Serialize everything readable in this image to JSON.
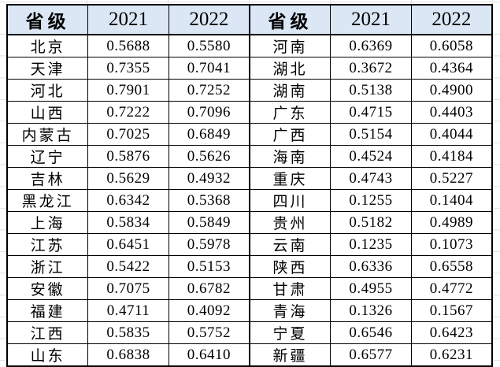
{
  "colors": {
    "header_bg": "#dbe7f4",
    "border": "#000000",
    "gridline": "#e0e0e0"
  },
  "chart_data": {
    "type": "table",
    "title": "",
    "columns": [
      "省级",
      "2021",
      "2022",
      "省级",
      "2021",
      "2022"
    ],
    "rows": [
      [
        "北京",
        "0.5688",
        "0.5580",
        "河南",
        "0.6369",
        "0.6058"
      ],
      [
        "天津",
        "0.7355",
        "0.7041",
        "湖北",
        "0.3672",
        "0.4364"
      ],
      [
        "河北",
        "0.7901",
        "0.7252",
        "湖南",
        "0.5138",
        "0.4900"
      ],
      [
        "山西",
        "0.7222",
        "0.7096",
        "广东",
        "0.4715",
        "0.4403"
      ],
      [
        "内蒙古",
        "0.7025",
        "0.6849",
        "广西",
        "0.5154",
        "0.4044"
      ],
      [
        "辽宁",
        "0.5876",
        "0.5626",
        "海南",
        "0.4524",
        "0.4184"
      ],
      [
        "吉林",
        "0.5629",
        "0.4932",
        "重庆",
        "0.4743",
        "0.5227"
      ],
      [
        "黑龙江",
        "0.6342",
        "0.5368",
        "四川",
        "0.1255",
        "0.1404"
      ],
      [
        "上海",
        "0.5834",
        "0.5849",
        "贵州",
        "0.5182",
        "0.4989"
      ],
      [
        "江苏",
        "0.6451",
        "0.5978",
        "云南",
        "0.1235",
        "0.1073"
      ],
      [
        "浙江",
        "0.5422",
        "0.5153",
        "陕西",
        "0.6336",
        "0.6558"
      ],
      [
        "安徽",
        "0.7075",
        "0.6782",
        "甘肃",
        "0.4955",
        "0.4772"
      ],
      [
        "福建",
        "0.4711",
        "0.4092",
        "青海",
        "0.1326",
        "0.1567"
      ],
      [
        "江西",
        "0.5835",
        "0.5752",
        "宁夏",
        "0.6546",
        "0.6423"
      ],
      [
        "山东",
        "0.6838",
        "0.6410",
        "新疆",
        "0.6577",
        "0.6231"
      ]
    ]
  }
}
